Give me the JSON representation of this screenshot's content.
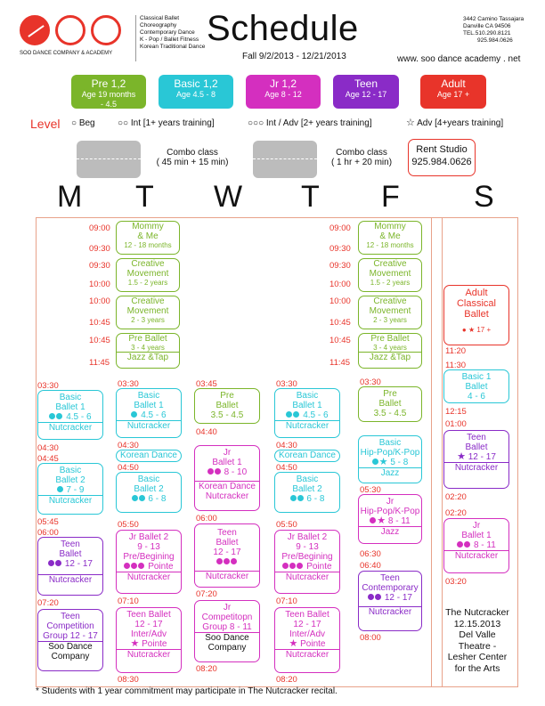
{
  "logo": {
    "letters": "SOO",
    "company": "SOO DANCE COMPANY & ACADEMY"
  },
  "programs": [
    "Classical Ballet",
    "Choreography",
    "Contemporary Dance",
    "K - Pop / Ballet Fitness",
    "Korean Traditional Dance"
  ],
  "title": "Schedule",
  "season": "Fall  9/2/2013 - 12/21/2013",
  "address": {
    "street": "3442 Camino Tassajara",
    "city": "Danville CA 94506",
    "tel": "TEL.510.290.8121",
    "fax": "925.984.0626",
    "web": "www. soo dance academy . net"
  },
  "age_groups": [
    {
      "name": "Pre 1,2",
      "age": "Age 19 months",
      "age2": "- 4.5",
      "color": "#7bb52a"
    },
    {
      "name": "Basic 1,2",
      "age": "Age 4.5 - 8",
      "age2": "",
      "color": "#29c7d6"
    },
    {
      "name": "Jr 1,2",
      "age": "Age 8 - 12",
      "age2": "",
      "color": "#d42fbf"
    },
    {
      "name": "Teen",
      "age": "Age 12 - 17",
      "age2": "",
      "color": "#8a2bc7"
    },
    {
      "name": "Adult",
      "age": "Age 17 +",
      "age2": "",
      "color": "#e8342a"
    }
  ],
  "levels": {
    "label": "Level",
    "beg": "Beg",
    "int": "Int [1+ years training]",
    "int_adv": "Int / Adv [2+ years training]",
    "adv": "Adv [4+years training]"
  },
  "combo": {
    "short": "Combo class",
    "short_time": "( 45 min + 15 min)",
    "long": "Combo class",
    "long_time": "( 1 hr + 20 min)"
  },
  "rent": {
    "label": "Rent Studio",
    "phone": "925.984.0626"
  },
  "days": [
    "M",
    "T",
    "W",
    "T",
    "F",
    "S"
  ],
  "footer": "* Students with 1 year commitment may participate in The Nutcracker recital.",
  "nutcracker_info": [
    "The Nutcracker",
    "12.15.2013",
    "Del Valle",
    "Theatre -",
    "Lesher Center",
    "for the Arts"
  ],
  "times": {
    "t0900": "09:00",
    "t0930": "09:30",
    "t1000": "10:00",
    "t1045": "10:45",
    "t1145": "11:45",
    "t0330": "03:30",
    "t0430": "04:30",
    "t0445": "04:45",
    "t0545": "05:45",
    "t0600": "06:00",
    "t0720": "07:20",
    "t0440": "04:40",
    "t0450": "04:50",
    "t0550": "05:50",
    "t0710": "07:10",
    "t0820": "08:20",
    "t0830": "08:30",
    "t0345": "03:45",
    "t0530": "05:30",
    "t0630": "06:30",
    "t0640": "06:40",
    "t0800": "08:00",
    "t1120": "11:20",
    "t1130": "11:30",
    "t1215": "12:15",
    "t0100": "01:00",
    "t0220": "02:20",
    "t0320": "03:20"
  },
  "classes": {
    "mommy": "Mommy",
    "me": "& Me",
    "mommy_age": "12 - 18 months",
    "creative": "Creative",
    "movement": "Movement",
    "creative_age1": "1.5 - 2 years",
    "creative_age2": "2 - 3 years",
    "pre_ballet": "Pre  Ballet",
    "pre_ballet_age": "3 - 4 years",
    "jazz_tap": "Jazz &Tap",
    "basic": "Basic",
    "ballet1": "Ballet 1",
    "basic_age1": "4.5 - 6",
    "nutcracker": "Nutcracker",
    "ballet2": "Ballet",
    "two": "2",
    "basic_age2": "7 - 9",
    "teen": "Teen",
    "ballet": "Ballet",
    "teen_age": "12 - 17",
    "teen_comp": "Teen",
    "competition": "Competition",
    "group": "Group 12 - 17",
    "soo_dance": "Soo Dance",
    "company": "Company",
    "korean": "Korean Dance",
    "ballet_2": "Ballet 2",
    "basic_age3": "6 - 8",
    "jr_ballet2": "Jr Ballet 2",
    "jr_age": "9 - 13",
    "pre_beg": "Pre/Begining",
    "pointe": "Pointe",
    "teen_ballet": "Teen Ballet",
    "inter_adv": "Inter/Adv",
    "pre": "Pre",
    "pre_age": "3.5 - 4.5",
    "jr": "Jr",
    "jr_ballet1": "Ballet 1",
    "jr_age1": "8 - 10",
    "korean_nut": "Korean Dance",
    "korean_nut2": "Nutcracker",
    "jr_comp": "Competitopn",
    "jr_group": "Group 8 - 11",
    "hiphop": "Hip-Pop/K-Pop",
    "hiphop_age": "5 - 8",
    "jazz": "Jazz",
    "hiphop_age2": "8 - 11",
    "contemporary": "Contemporary",
    "adult": "Adult",
    "classical": "Classical",
    "adult_ballet": "Ballet",
    "adult_age": "17 +",
    "basic1": "Basic 1",
    "sat_basic_age": "4 - 6",
    "sat_jr_age": "8 - 11"
  }
}
